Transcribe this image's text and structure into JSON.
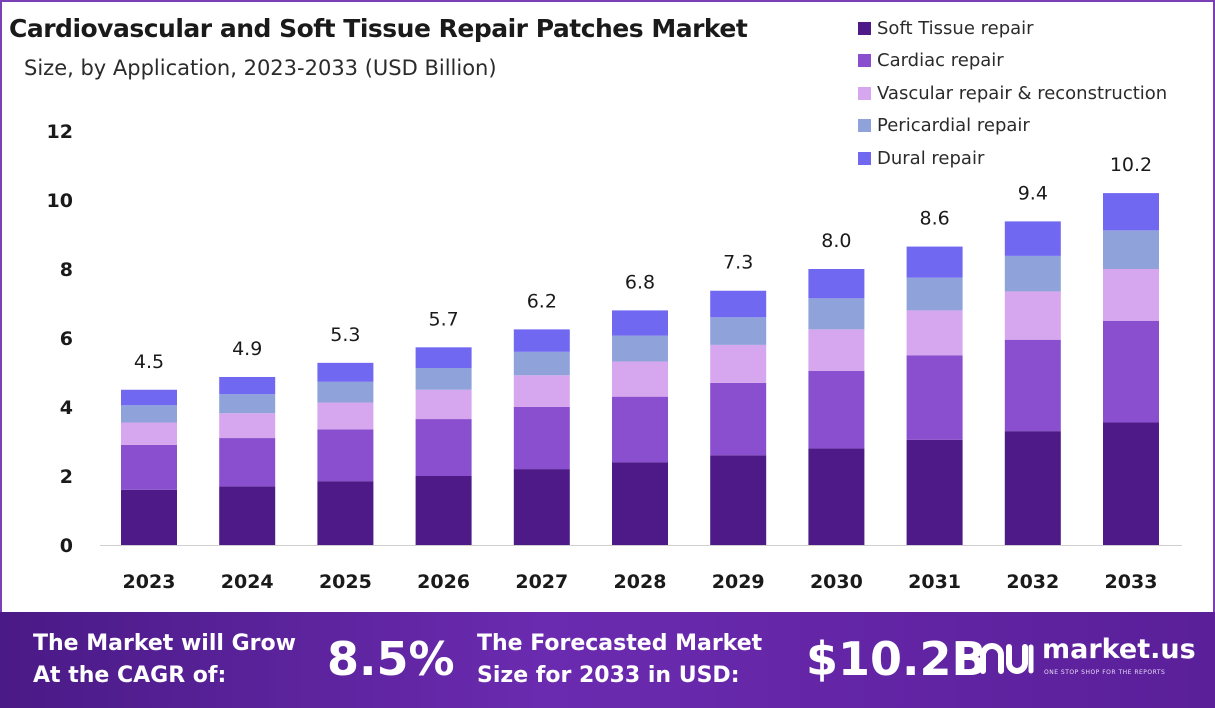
{
  "colors": {
    "soft_tissue": "#4d1a87",
    "cardiac": "#8a4fcf",
    "vascular": "#d6a7ee",
    "pericardial": "#8fa3da",
    "dural": "#7168f2",
    "footer_bg": "#5a1f99"
  },
  "chart_data": {
    "type": "bar",
    "stacked": true,
    "title": "Cardiovascular and Soft Tissue Repair Patches Market",
    "subtitle": "Size, by Application, 2023-2033 (USD Billion)",
    "categories": [
      "2023",
      "2024",
      "2025",
      "2026",
      "2027",
      "2028",
      "2029",
      "2030",
      "2031",
      "2032",
      "2033"
    ],
    "totals": [
      "4.5",
      "4.9",
      "5.3",
      "5.7",
      "6.2",
      "6.8",
      "7.3",
      "8.0",
      "8.6",
      "9.4",
      "10.2"
    ],
    "series": [
      {
        "name": "Soft Tissue repair",
        "color": "#4d1a87",
        "values": [
          1.6,
          1.7,
          1.85,
          2.0,
          2.2,
          2.4,
          2.6,
          2.8,
          3.05,
          3.3,
          3.55
        ]
      },
      {
        "name": "Cardiac repair",
        "color": "#8a4fcf",
        "values": [
          1.3,
          1.4,
          1.5,
          1.65,
          1.8,
          1.9,
          2.1,
          2.25,
          2.45,
          2.65,
          2.95
        ]
      },
      {
        "name": "Vascular repair & reconstruction",
        "color": "#d6a7ee",
        "values": [
          0.65,
          0.72,
          0.78,
          0.85,
          0.92,
          1.02,
          1.1,
          1.2,
          1.3,
          1.4,
          1.5
        ]
      },
      {
        "name": "Pericardial repair",
        "color": "#8fa3da",
        "values": [
          0.5,
          0.55,
          0.6,
          0.63,
          0.68,
          0.75,
          0.8,
          0.9,
          0.95,
          1.03,
          1.12
        ]
      },
      {
        "name": "Dural repair",
        "color": "#7168f2",
        "values": [
          0.45,
          0.5,
          0.55,
          0.6,
          0.65,
          0.73,
          0.77,
          0.85,
          0.9,
          1.0,
          1.08
        ]
      }
    ],
    "yticks": [
      "0",
      "2",
      "4",
      "6",
      "8",
      "10",
      "12"
    ],
    "ylim": [
      0,
      12
    ],
    "legend_position": "top-right",
    "grid": false
  },
  "footer": {
    "cagr_line1": "The Market will Grow",
    "cagr_line2": "At the CAGR of:",
    "cagr_value": "8.5%",
    "forecast_line1": "The Forecasted Market",
    "forecast_line2": "Size for 2033 in USD:",
    "forecast_value": "$10.2B",
    "logo_text": "market.us",
    "logo_tagline": "ONE STOP SHOP FOR THE REPORTS"
  }
}
